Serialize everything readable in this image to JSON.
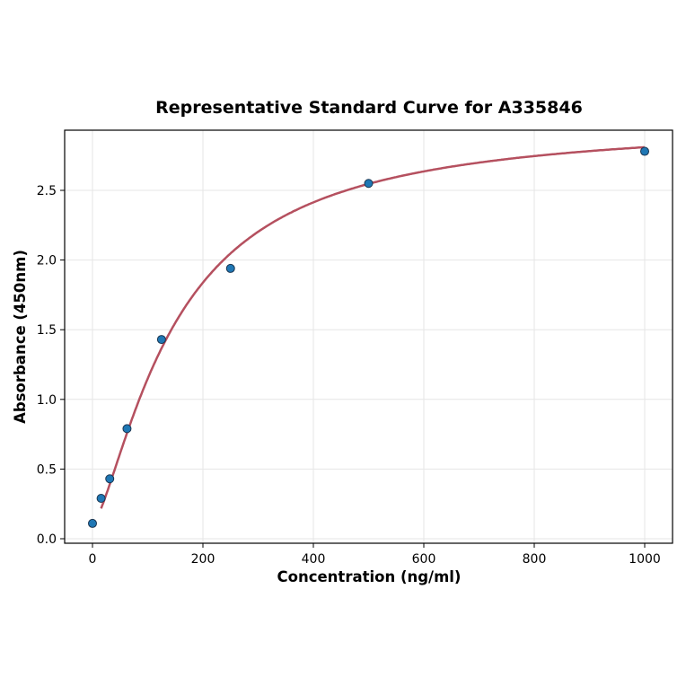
{
  "chart_data": {
    "type": "scatter",
    "title": "Representative Standard Curve for A335846",
    "xlabel": "Concentration (ng/ml)",
    "ylabel": "Absorbance (450nm)",
    "xlim": [
      -50,
      1050
    ],
    "ylim": [
      -0.03,
      2.9
    ],
    "xticks": [
      "0",
      "200",
      "400",
      "600",
      "800",
      "1000"
    ],
    "yticks": [
      "0.0",
      "0.5",
      "1.0",
      "1.5",
      "2.0",
      "2.5"
    ],
    "grid": true,
    "series": [
      {
        "x": [
          0,
          15.6,
          31.25,
          62.5,
          125,
          250,
          500,
          1000
        ],
        "y": [
          0.11,
          0.29,
          0.43,
          0.79,
          1.43,
          1.94,
          2.55,
          2.78
        ],
        "color": "#1f77b4"
      }
    ],
    "fit_curve": {
      "color": "#b5505f",
      "type": "4PL"
    }
  }
}
